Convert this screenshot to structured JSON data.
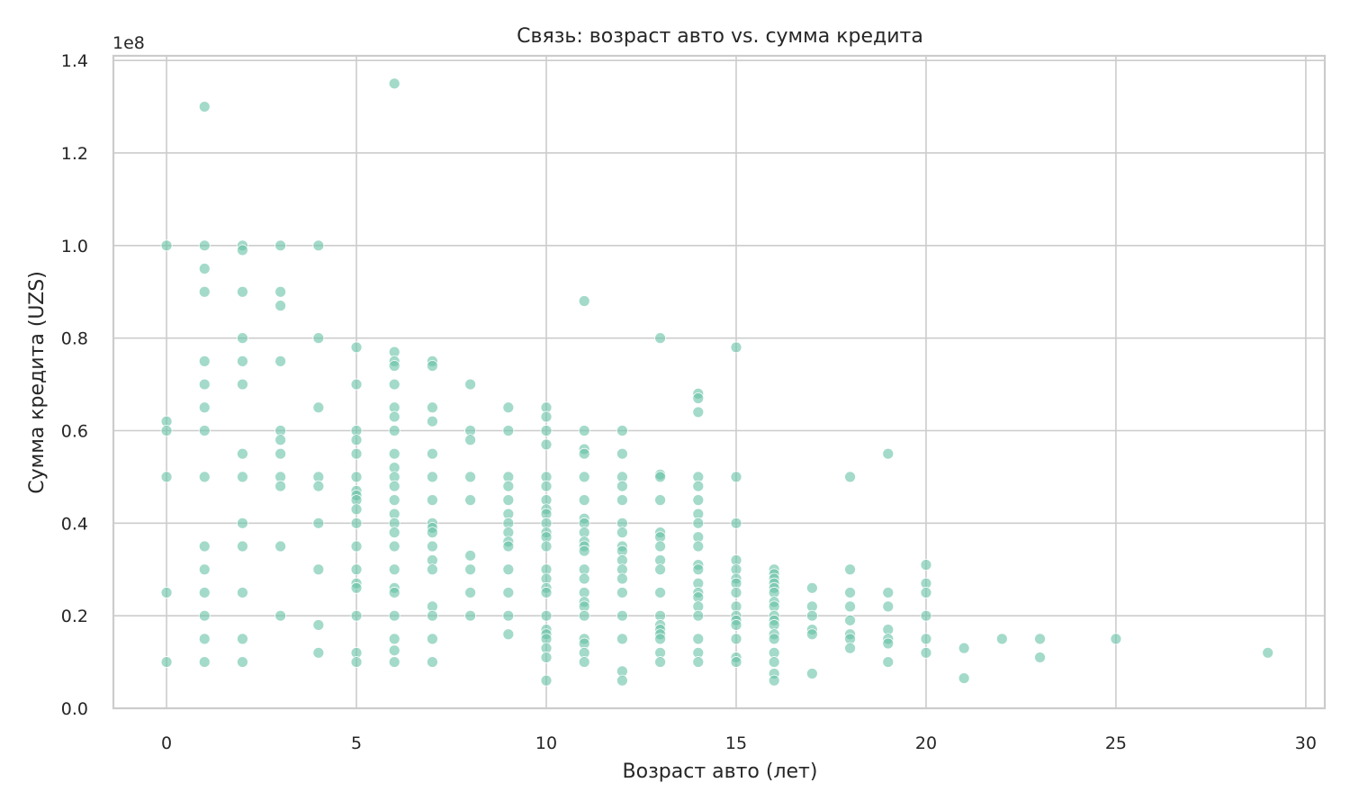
{
  "chart_data": {
    "type": "scatter",
    "title": "Связь: возраст авто vs. сумма кредита",
    "xlabel": "Возраст авто (лет)",
    "ylabel": "Сумма кредита (UZS)",
    "y_offset_label": "1e8",
    "xlim": [
      -1.4,
      30.5
    ],
    "ylim": [
      0,
      1.41
    ],
    "x_ticks": [
      0,
      5,
      10,
      15,
      20,
      25,
      30
    ],
    "y_ticks": [
      0.0,
      0.2,
      0.4,
      0.6,
      0.8,
      1.0,
      1.2,
      1.4
    ],
    "x_tick_labels": [
      "0",
      "5",
      "10",
      "15",
      "20",
      "25",
      "30"
    ],
    "y_tick_labels": [
      "0.0",
      "0.2",
      "0.4",
      "0.6",
      "0.8",
      "1.0",
      "1.2",
      "1.4"
    ],
    "grid": true,
    "point_color": "#66c2a5",
    "points": [
      [
        0,
        1.0
      ],
      [
        0,
        0.62
      ],
      [
        0,
        0.6
      ],
      [
        0,
        0.5
      ],
      [
        0,
        0.25
      ],
      [
        0,
        0.1
      ],
      [
        1,
        1.3
      ],
      [
        1,
        1.0
      ],
      [
        1,
        0.95
      ],
      [
        1,
        0.9
      ],
      [
        1,
        0.75
      ],
      [
        1,
        0.7
      ],
      [
        1,
        0.65
      ],
      [
        1,
        0.6
      ],
      [
        1,
        0.5
      ],
      [
        1,
        0.35
      ],
      [
        1,
        0.3
      ],
      [
        1,
        0.25
      ],
      [
        1,
        0.2
      ],
      [
        1,
        0.15
      ],
      [
        1,
        0.1
      ],
      [
        2,
        1.0
      ],
      [
        2,
        0.99
      ],
      [
        2,
        0.9
      ],
      [
        2,
        0.8
      ],
      [
        2,
        0.75
      ],
      [
        2,
        0.7
      ],
      [
        2,
        0.55
      ],
      [
        2,
        0.5
      ],
      [
        2,
        0.4
      ],
      [
        2,
        0.35
      ],
      [
        2,
        0.25
      ],
      [
        2,
        0.15
      ],
      [
        2,
        0.1
      ],
      [
        3,
        1.0
      ],
      [
        3,
        0.9
      ],
      [
        3,
        0.87
      ],
      [
        3,
        0.75
      ],
      [
        3,
        0.6
      ],
      [
        3,
        0.58
      ],
      [
        3,
        0.55
      ],
      [
        3,
        0.5
      ],
      [
        3,
        0.48
      ],
      [
        3,
        0.35
      ],
      [
        3,
        0.2
      ],
      [
        4,
        1.0
      ],
      [
        4,
        0.8
      ],
      [
        4,
        0.65
      ],
      [
        4,
        0.5
      ],
      [
        4,
        0.48
      ],
      [
        4,
        0.4
      ],
      [
        4,
        0.3
      ],
      [
        4,
        0.18
      ],
      [
        4,
        0.12
      ],
      [
        5,
        0.78
      ],
      [
        5,
        0.7
      ],
      [
        5,
        0.6
      ],
      [
        5,
        0.58
      ],
      [
        5,
        0.55
      ],
      [
        5,
        0.5
      ],
      [
        5,
        0.47
      ],
      [
        5,
        0.46
      ],
      [
        5,
        0.45
      ],
      [
        5,
        0.43
      ],
      [
        5,
        0.4
      ],
      [
        5,
        0.35
      ],
      [
        5,
        0.3
      ],
      [
        5,
        0.27
      ],
      [
        5,
        0.26
      ],
      [
        5,
        0.2
      ],
      [
        5,
        0.12
      ],
      [
        5,
        0.1
      ],
      [
        6,
        1.35
      ],
      [
        6,
        0.77
      ],
      [
        6,
        0.75
      ],
      [
        6,
        0.74
      ],
      [
        6,
        0.7
      ],
      [
        6,
        0.65
      ],
      [
        6,
        0.63
      ],
      [
        6,
        0.6
      ],
      [
        6,
        0.55
      ],
      [
        6,
        0.52
      ],
      [
        6,
        0.5
      ],
      [
        6,
        0.48
      ],
      [
        6,
        0.45
      ],
      [
        6,
        0.42
      ],
      [
        6,
        0.4
      ],
      [
        6,
        0.38
      ],
      [
        6,
        0.35
      ],
      [
        6,
        0.3
      ],
      [
        6,
        0.26
      ],
      [
        6,
        0.25
      ],
      [
        6,
        0.2
      ],
      [
        6,
        0.15
      ],
      [
        6,
        0.125
      ],
      [
        6,
        0.1
      ],
      [
        7,
        0.75
      ],
      [
        7,
        0.74
      ],
      [
        7,
        0.65
      ],
      [
        7,
        0.62
      ],
      [
        7,
        0.55
      ],
      [
        7,
        0.5
      ],
      [
        7,
        0.45
      ],
      [
        7,
        0.4
      ],
      [
        7,
        0.39
      ],
      [
        7,
        0.38
      ],
      [
        7,
        0.35
      ],
      [
        7,
        0.32
      ],
      [
        7,
        0.3
      ],
      [
        7,
        0.22
      ],
      [
        7,
        0.2
      ],
      [
        7,
        0.15
      ],
      [
        7,
        0.1
      ],
      [
        8,
        0.7
      ],
      [
        8,
        0.6
      ],
      [
        8,
        0.58
      ],
      [
        8,
        0.5
      ],
      [
        8,
        0.45
      ],
      [
        8,
        0.33
      ],
      [
        8,
        0.3
      ],
      [
        8,
        0.25
      ],
      [
        8,
        0.2
      ],
      [
        9,
        0.65
      ],
      [
        9,
        0.6
      ],
      [
        9,
        0.5
      ],
      [
        9,
        0.48
      ],
      [
        9,
        0.45
      ],
      [
        9,
        0.42
      ],
      [
        9,
        0.4
      ],
      [
        9,
        0.38
      ],
      [
        9,
        0.36
      ],
      [
        9,
        0.35
      ],
      [
        9,
        0.3
      ],
      [
        9,
        0.25
      ],
      [
        9,
        0.2
      ],
      [
        9,
        0.16
      ],
      [
        10,
        0.65
      ],
      [
        10,
        0.63
      ],
      [
        10,
        0.6
      ],
      [
        10,
        0.57
      ],
      [
        10,
        0.5
      ],
      [
        10,
        0.48
      ],
      [
        10,
        0.45
      ],
      [
        10,
        0.43
      ],
      [
        10,
        0.42
      ],
      [
        10,
        0.4
      ],
      [
        10,
        0.38
      ],
      [
        10,
        0.37
      ],
      [
        10,
        0.35
      ],
      [
        10,
        0.3
      ],
      [
        10,
        0.28
      ],
      [
        10,
        0.26
      ],
      [
        10,
        0.25
      ],
      [
        10,
        0.2
      ],
      [
        10,
        0.17
      ],
      [
        10,
        0.16
      ],
      [
        10,
        0.15
      ],
      [
        10,
        0.13
      ],
      [
        10,
        0.11
      ],
      [
        10,
        0.06
      ],
      [
        11,
        0.88
      ],
      [
        11,
        0.6
      ],
      [
        11,
        0.56
      ],
      [
        11,
        0.55
      ],
      [
        11,
        0.5
      ],
      [
        11,
        0.45
      ],
      [
        11,
        0.41
      ],
      [
        11,
        0.4
      ],
      [
        11,
        0.38
      ],
      [
        11,
        0.36
      ],
      [
        11,
        0.35
      ],
      [
        11,
        0.34
      ],
      [
        11,
        0.3
      ],
      [
        11,
        0.28
      ],
      [
        11,
        0.25
      ],
      [
        11,
        0.23
      ],
      [
        11,
        0.22
      ],
      [
        11,
        0.2
      ],
      [
        11,
        0.15
      ],
      [
        11,
        0.14
      ],
      [
        11,
        0.12
      ],
      [
        11,
        0.1
      ],
      [
        12,
        0.6
      ],
      [
        12,
        0.55
      ],
      [
        12,
        0.5
      ],
      [
        12,
        0.48
      ],
      [
        12,
        0.45
      ],
      [
        12,
        0.4
      ],
      [
        12,
        0.38
      ],
      [
        12,
        0.35
      ],
      [
        12,
        0.34
      ],
      [
        12,
        0.32
      ],
      [
        12,
        0.3
      ],
      [
        12,
        0.28
      ],
      [
        12,
        0.25
      ],
      [
        12,
        0.2
      ],
      [
        12,
        0.15
      ],
      [
        12,
        0.08
      ],
      [
        12,
        0.06
      ],
      [
        13,
        0.8
      ],
      [
        13,
        0.505
      ],
      [
        13,
        0.5
      ],
      [
        13,
        0.45
      ],
      [
        13,
        0.38
      ],
      [
        13,
        0.37
      ],
      [
        13,
        0.35
      ],
      [
        13,
        0.32
      ],
      [
        13,
        0.3
      ],
      [
        13,
        0.25
      ],
      [
        13,
        0.2
      ],
      [
        13,
        0.18
      ],
      [
        13,
        0.17
      ],
      [
        13,
        0.16
      ],
      [
        13,
        0.15
      ],
      [
        13,
        0.12
      ],
      [
        13,
        0.1
      ],
      [
        14,
        0.68
      ],
      [
        14,
        0.67
      ],
      [
        14,
        0.64
      ],
      [
        14,
        0.5
      ],
      [
        14,
        0.48
      ],
      [
        14,
        0.45
      ],
      [
        14,
        0.42
      ],
      [
        14,
        0.4
      ],
      [
        14,
        0.37
      ],
      [
        14,
        0.35
      ],
      [
        14,
        0.31
      ],
      [
        14,
        0.3
      ],
      [
        14,
        0.27
      ],
      [
        14,
        0.25
      ],
      [
        14,
        0.24
      ],
      [
        14,
        0.22
      ],
      [
        14,
        0.2
      ],
      [
        14,
        0.15
      ],
      [
        14,
        0.12
      ],
      [
        14,
        0.1
      ],
      [
        15,
        0.78
      ],
      [
        15,
        0.5
      ],
      [
        15,
        0.4
      ],
      [
        15,
        0.32
      ],
      [
        15,
        0.3
      ],
      [
        15,
        0.28
      ],
      [
        15,
        0.27
      ],
      [
        15,
        0.25
      ],
      [
        15,
        0.22
      ],
      [
        15,
        0.2
      ],
      [
        15,
        0.19
      ],
      [
        15,
        0.18
      ],
      [
        15,
        0.15
      ],
      [
        15,
        0.11
      ],
      [
        15,
        0.1
      ],
      [
        16,
        0.3
      ],
      [
        16,
        0.29
      ],
      [
        16,
        0.28
      ],
      [
        16,
        0.27
      ],
      [
        16,
        0.26
      ],
      [
        16,
        0.25
      ],
      [
        16,
        0.23
      ],
      [
        16,
        0.22
      ],
      [
        16,
        0.2
      ],
      [
        16,
        0.19
      ],
      [
        16,
        0.18
      ],
      [
        16,
        0.16
      ],
      [
        16,
        0.15
      ],
      [
        16,
        0.12
      ],
      [
        16,
        0.1
      ],
      [
        16,
        0.075
      ],
      [
        16,
        0.06
      ],
      [
        17,
        0.26
      ],
      [
        17,
        0.22
      ],
      [
        17,
        0.2
      ],
      [
        17,
        0.17
      ],
      [
        17,
        0.16
      ],
      [
        17,
        0.075
      ],
      [
        18,
        0.5
      ],
      [
        18,
        0.3
      ],
      [
        18,
        0.25
      ],
      [
        18,
        0.22
      ],
      [
        18,
        0.19
      ],
      [
        18,
        0.16
      ],
      [
        18,
        0.15
      ],
      [
        18,
        0.13
      ],
      [
        19,
        0.55
      ],
      [
        19,
        0.25
      ],
      [
        19,
        0.22
      ],
      [
        19,
        0.17
      ],
      [
        19,
        0.15
      ],
      [
        19,
        0.14
      ],
      [
        19,
        0.1
      ],
      [
        20,
        0.31
      ],
      [
        20,
        0.27
      ],
      [
        20,
        0.25
      ],
      [
        20,
        0.2
      ],
      [
        20,
        0.15
      ],
      [
        20,
        0.12
      ],
      [
        21,
        0.13
      ],
      [
        21,
        0.065
      ],
      [
        22,
        0.15
      ],
      [
        23,
        0.15
      ],
      [
        23,
        0.11
      ],
      [
        25,
        0.15
      ],
      [
        29,
        0.12
      ]
    ]
  }
}
